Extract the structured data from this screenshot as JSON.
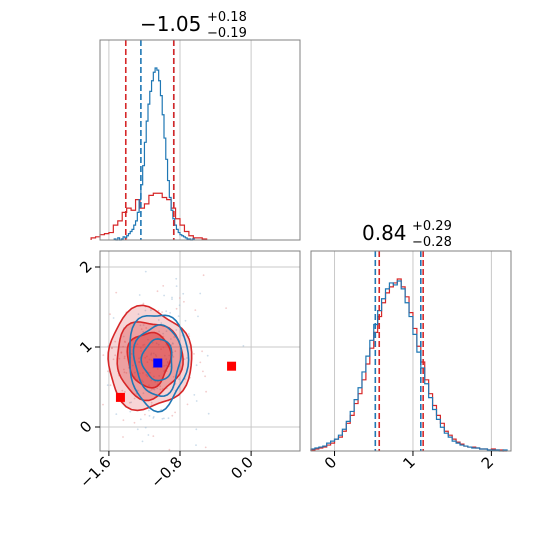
{
  "colors": {
    "blue": "#1f77b4",
    "red": "#d62728",
    "grid": "#c8c8c8",
    "frame": "#808080",
    "marker_blue": "#0000ff",
    "marker_red": "#ff0000"
  },
  "chart_data": [
    {
      "type": "histogram",
      "panel": "top-left",
      "title": {
        "value": "−1.05",
        "plus": "+0.18",
        "minus": "−0.19"
      },
      "xlim": [
        -1.7,
        0.55
      ],
      "grid": true,
      "xticks": [
        -1.6,
        -0.8,
        0.0
      ],
      "series": [
        {
          "name": "",
          "color": "#1f77b4",
          "bin_edges": [
            -1.54,
            -1.52,
            -1.5,
            -1.48,
            -1.46,
            -1.44,
            -1.42,
            -1.4,
            -1.38,
            -1.36,
            -1.34,
            -1.32,
            -1.3,
            -1.28,
            -1.26,
            -1.24,
            -1.22,
            -1.2,
            -1.18,
            -1.16,
            -1.14,
            -1.12,
            -1.1,
            -1.08,
            -1.06,
            -1.04,
            -1.02,
            -1.0,
            -0.98,
            -0.96,
            -0.94,
            -0.92,
            -0.9,
            -0.88,
            -0.86,
            -0.84,
            -0.82,
            -0.8,
            -0.78,
            -0.76,
            -0.74,
            -0.72,
            -0.7,
            -0.68,
            -0.66,
            -0.64
          ],
          "counts": [
            1,
            0,
            2,
            0,
            1,
            3,
            2,
            4,
            6,
            8,
            10,
            14,
            18,
            26,
            38,
            52,
            70,
            92,
            112,
            128,
            140,
            150,
            158,
            162,
            160,
            150,
            136,
            118,
            96,
            76,
            56,
            40,
            28,
            20,
            14,
            10,
            7,
            5,
            4,
            3,
            2,
            1,
            1,
            0,
            1
          ],
          "quantiles": [
            -1.24,
            -0.87
          ]
        },
        {
          "name": "",
          "color": "#d62728",
          "bin_edges": [
            -1.8,
            -1.75,
            -1.7,
            -1.65,
            -1.6,
            -1.55,
            -1.5,
            -1.45,
            -1.4,
            -1.35,
            -1.3,
            -1.25,
            -1.2,
            -1.15,
            -1.1,
            -1.05,
            -1.0,
            -0.95,
            -0.9,
            -0.85,
            -0.8,
            -0.75,
            -0.7,
            -0.65,
            -0.6,
            -0.55,
            -0.5
          ],
          "counts": [
            2,
            3,
            5,
            6,
            7,
            14,
            18,
            26,
            30,
            28,
            38,
            30,
            34,
            42,
            44,
            44,
            40,
            38,
            30,
            20,
            14,
            8,
            4,
            2,
            2,
            1
          ],
          "quantiles": [
            -1.41,
            -0.87
          ]
        }
      ]
    },
    {
      "type": "contour",
      "panel": "bottom-left",
      "xlim": [
        -1.7,
        0.55
      ],
      "ylim": [
        -0.3,
        2.2
      ],
      "grid": true,
      "xticks": [
        -1.6,
        -0.8,
        0.0
      ],
      "yticks": [
        0,
        1,
        2
      ],
      "series": [
        {
          "name": "",
          "color": "#1f77b4",
          "center": [
            -1.05,
            0.84
          ],
          "levels": [
            {
              "rx": 0.17,
              "ry": 0.26
            },
            {
              "rx": 0.26,
              "ry": 0.44
            },
            {
              "rx": 0.33,
              "ry": 0.6
            }
          ]
        },
        {
          "name": "",
          "color": "#d62728",
          "center": [
            -1.15,
            0.85
          ],
          "levels": [
            {
              "rx": 0.24,
              "ry": 0.34
            },
            {
              "rx": 0.37,
              "ry": 0.48
            },
            {
              "rx": 0.47,
              "ry": 0.63
            }
          ]
        }
      ],
      "markers": [
        {
          "x": -1.05,
          "y": 0.8,
          "color": "#0000ff"
        },
        {
          "x": -1.47,
          "y": 0.37,
          "color": "#ff0000"
        },
        {
          "x": -0.22,
          "y": 0.76,
          "color": "#ff0000"
        }
      ]
    },
    {
      "type": "histogram",
      "panel": "bottom-right",
      "title": {
        "value": "0.84",
        "plus": "+0.29",
        "minus": "−0.28"
      },
      "xlim": [
        -0.3,
        2.25
      ],
      "grid": true,
      "xticks": [
        0,
        1,
        2
      ],
      "series": [
        {
          "name": "",
          "color": "#1f77b4",
          "bin_edges": [
            -0.3,
            -0.25,
            -0.2,
            -0.15,
            -0.1,
            -0.05,
            0.0,
            0.05,
            0.1,
            0.15,
            0.2,
            0.25,
            0.3,
            0.35,
            0.4,
            0.45,
            0.5,
            0.55,
            0.6,
            0.65,
            0.7,
            0.75,
            0.8,
            0.85,
            0.9,
            0.95,
            1.0,
            1.05,
            1.1,
            1.15,
            1.2,
            1.25,
            1.3,
            1.35,
            1.4,
            1.45,
            1.5,
            1.55,
            1.6,
            1.65,
            1.7,
            1.75,
            1.8,
            1.85,
            1.9,
            1.95,
            2.0,
            2.05,
            2.1,
            2.15,
            2.2
          ],
          "counts": [
            2,
            3,
            4,
            5,
            8,
            10,
            12,
            16,
            22,
            30,
            40,
            52,
            64,
            80,
            96,
            112,
            128,
            142,
            154,
            164,
            170,
            168,
            172,
            164,
            150,
            136,
            118,
            100,
            84,
            68,
            54,
            42,
            32,
            24,
            18,
            14,
            10,
            8,
            6,
            5,
            4,
            3,
            3,
            2,
            2,
            1,
            1,
            1,
            0,
            1
          ],
          "quantiles": [
            0.52,
            1.1
          ]
        },
        {
          "name": "",
          "color": "#d62728",
          "bin_edges": [
            -0.3,
            -0.25,
            -0.2,
            -0.15,
            -0.1,
            -0.05,
            0.0,
            0.05,
            0.1,
            0.15,
            0.2,
            0.25,
            0.3,
            0.35,
            0.4,
            0.45,
            0.5,
            0.55,
            0.6,
            0.65,
            0.7,
            0.75,
            0.8,
            0.85,
            0.9,
            0.95,
            1.0,
            1.05,
            1.1,
            1.15,
            1.2,
            1.25,
            1.3,
            1.35,
            1.4,
            1.45,
            1.5,
            1.55,
            1.6,
            1.65,
            1.7,
            1.75,
            1.8,
            1.85,
            1.9,
            1.95,
            2.0,
            2.05,
            2.1,
            2.15,
            2.2
          ],
          "counts": [
            1,
            2,
            3,
            4,
            6,
            8,
            12,
            14,
            20,
            28,
            36,
            48,
            58,
            72,
            88,
            104,
            120,
            136,
            150,
            160,
            166,
            170,
            174,
            166,
            156,
            140,
            124,
            106,
            90,
            72,
            58,
            46,
            36,
            28,
            20,
            16,
            12,
            9,
            7,
            5,
            4,
            4,
            3,
            2,
            2,
            1,
            2,
            1,
            1,
            0
          ],
          "quantiles": [
            0.57,
            1.13
          ]
        }
      ]
    }
  ]
}
